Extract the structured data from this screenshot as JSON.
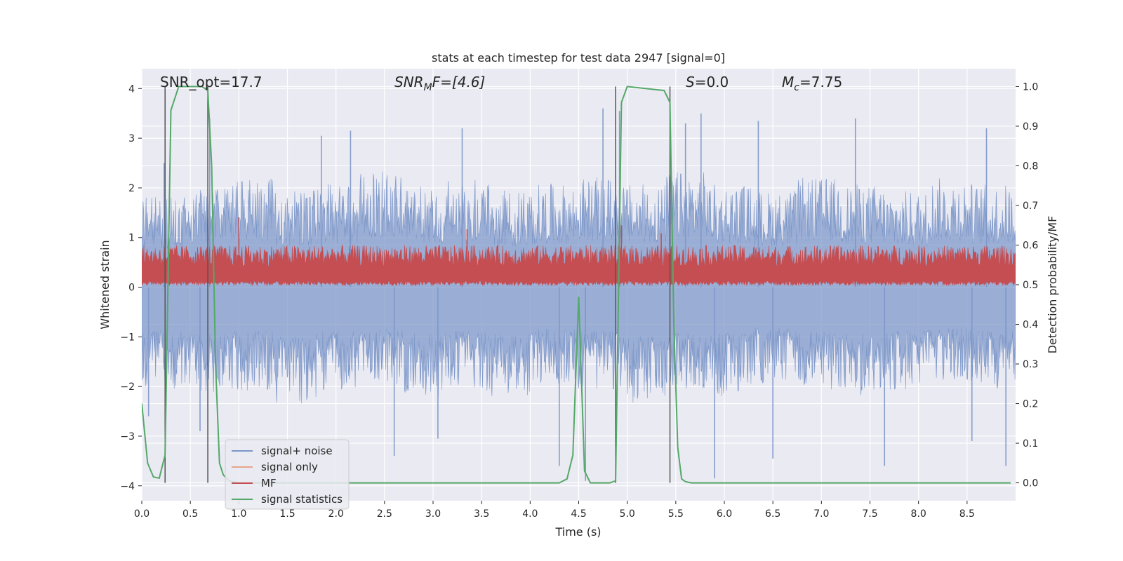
{
  "chart_data": {
    "type": "line",
    "title": "stats at each timestep for test data 2947 [signal=0]",
    "xlabel": "Time (s)",
    "ylabel_left": "Whitened strain",
    "ylabel_right": "Detection probability/MF",
    "xlim": [
      0.0,
      9.0
    ],
    "ylim_left": [
      -4.3,
      4.4
    ],
    "ylim_right": [
      -0.045,
      1.045
    ],
    "x_ticks": [
      0.0,
      0.5,
      1.0,
      1.5,
      2.0,
      2.5,
      3.0,
      3.5,
      4.0,
      4.5,
      5.0,
      5.5,
      6.0,
      6.5,
      7.0,
      7.5,
      8.0,
      8.5
    ],
    "x_tick_labels": [
      "0.0",
      "0.5",
      "1.0",
      "1.5",
      "2.0",
      "2.5",
      "3.0",
      "3.5",
      "4.0",
      "4.5",
      "5.0",
      "5.5",
      "6.0",
      "6.5",
      "7.0",
      "7.5",
      "8.0",
      "8.5"
    ],
    "y_left_ticks": [
      -4,
      -3,
      -2,
      -1,
      0,
      1,
      2,
      3,
      4
    ],
    "y_left_tick_labels": [
      "−4",
      "−3",
      "−2",
      "−1",
      "0",
      "1",
      "2",
      "3",
      "4"
    ],
    "y_right_ticks": [
      0.0,
      0.1,
      0.2,
      0.3,
      0.4,
      0.5,
      0.6,
      0.7,
      0.8,
      0.9,
      1.0
    ],
    "y_right_tick_labels": [
      "0.0",
      "0.1",
      "0.2",
      "0.3",
      "0.4",
      "0.5",
      "0.6",
      "0.7",
      "0.8",
      "0.9",
      "1.0"
    ],
    "grid": true,
    "legend_placement": "lower-left",
    "annotations": {
      "snr_opt": "SNR_opt=17.7",
      "snr_mf_sym": "SNR",
      "snr_mf_sub": "M",
      "snr_mf_rest": "F=[4.6]",
      "s_sym": "S",
      "s_rest": "=0.0",
      "mc_sym": "M",
      "mc_sub": "c",
      "mc_rest": "=7.75"
    },
    "vertical_markers_s": [
      0.24,
      0.68,
      4.88,
      5.44
    ],
    "series": [
      {
        "name": "signal+ noise",
        "axis": "left",
        "color": "#7b96c8",
        "style": "noise band",
        "envelope_upper": [
          1.4,
          1.6,
          1.7,
          1.5,
          1.6,
          1.8,
          1.6,
          1.7,
          1.5,
          1.6,
          1.7,
          1.6,
          1.8,
          1.6,
          1.5,
          1.7,
          1.6,
          1.5,
          1.7,
          1.6
        ],
        "envelope_lower": [
          -1.6,
          -1.7,
          -1.6,
          -1.8,
          -1.6,
          -1.5,
          -1.7,
          -1.6,
          -1.7,
          -1.5,
          -1.6,
          -1.8,
          -1.6,
          -1.7,
          -1.5,
          -1.6,
          -1.7,
          -1.6,
          -1.5,
          -1.6
        ],
        "spikes": [
          {
            "x": 0.7,
            "y": 3.4
          },
          {
            "x": 0.23,
            "y": 2.5
          },
          {
            "x": 2.15,
            "y": 3.15
          },
          {
            "x": 3.3,
            "y": 3.2
          },
          {
            "x": 4.75,
            "y": 3.6
          },
          {
            "x": 4.92,
            "y": 3.55
          },
          {
            "x": 5.6,
            "y": 3.3
          },
          {
            "x": 5.76,
            "y": 3.5
          },
          {
            "x": 6.35,
            "y": 3.35
          },
          {
            "x": 7.35,
            "y": 3.4
          },
          {
            "x": 8.7,
            "y": 3.2
          },
          {
            "x": 1.85,
            "y": 3.05
          },
          {
            "x": 0.6,
            "y": -2.9
          },
          {
            "x": 2.6,
            "y": -3.4
          },
          {
            "x": 4.57,
            "y": -3.9
          },
          {
            "x": 5.9,
            "y": -3.85
          },
          {
            "x": 7.65,
            "y": -3.6
          },
          {
            "x": 4.3,
            "y": -3.6
          },
          {
            "x": 6.5,
            "y": -3.45
          },
          {
            "x": 0.07,
            "y": -2.6
          },
          {
            "x": 8.9,
            "y": -3.6
          },
          {
            "x": 3.05,
            "y": -3.05
          },
          {
            "x": 8.55,
            "y": -3.1
          }
        ]
      },
      {
        "name": "signal only",
        "axis": "left",
        "color": "#e8a58a",
        "values": []
      },
      {
        "name": "MF",
        "axis": "right",
        "color": "#c44e52",
        "style": "noise band",
        "band_low": 0.51,
        "band_high": 0.6,
        "peaks": [
          {
            "x": 1.0,
            "y": 0.67
          },
          {
            "x": 3.35,
            "y": 0.64
          },
          {
            "x": 4.94,
            "y": 0.65
          },
          {
            "x": 5.35,
            "y": 0.63
          }
        ]
      },
      {
        "name": "signal statistics",
        "axis": "right",
        "color": "#55a868",
        "x": [
          0.0,
          0.06,
          0.12,
          0.18,
          0.24,
          0.3,
          0.38,
          0.45,
          0.55,
          0.62,
          0.68,
          0.72,
          0.76,
          0.8,
          0.84,
          0.9,
          1.0,
          4.3,
          4.38,
          4.44,
          4.5,
          4.56,
          4.62,
          4.82,
          4.88,
          4.94,
          5.0,
          5.38,
          5.44,
          5.48,
          5.52,
          5.56,
          5.6,
          5.66,
          5.75,
          8.95
        ],
        "values": [
          0.2,
          0.05,
          0.015,
          0.012,
          0.07,
          0.94,
          1.0,
          1.0,
          1.0,
          1.0,
          0.99,
          0.8,
          0.3,
          0.05,
          0.02,
          0.005,
          0.0,
          0.0,
          0.01,
          0.07,
          0.47,
          0.03,
          0.0,
          0.0,
          0.005,
          0.96,
          1.0,
          0.99,
          0.96,
          0.4,
          0.09,
          0.01,
          0.003,
          0.0,
          0.0,
          0.0
        ]
      }
    ]
  }
}
